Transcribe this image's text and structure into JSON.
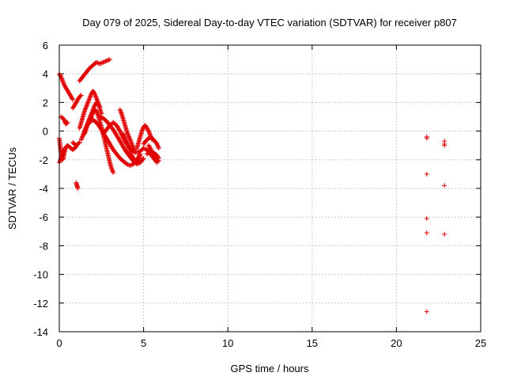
{
  "chart_data": {
    "type": "scatter",
    "title": "Day 079 of 2025, Sidereal Day-to-day VTEC variation (SDTVAR) for receiver p807",
    "xlabel": "GPS time / hours",
    "ylabel": "SDTVAR / TECUs",
    "xlim": [
      0,
      25
    ],
    "ylim": [
      -14,
      6
    ],
    "xticks": [
      0,
      5,
      10,
      15,
      20,
      25
    ],
    "yticks": [
      6,
      4,
      2,
      0,
      -2,
      -4,
      -6,
      -8,
      -10,
      -12,
      -14
    ],
    "grid": true,
    "marker": "+",
    "color": "#e00000",
    "series": [
      {
        "name": "p807",
        "segments": [
          {
            "x": [
              0.0,
              0.1,
              0.2,
              0.3,
              0.4,
              0.5,
              0.6,
              0.7,
              0.8
            ],
            "y": [
              4.0,
              3.8,
              3.5,
              3.2,
              3.0,
              2.8,
              2.6,
              2.4,
              2.2
            ]
          },
          {
            "x": [
              0.0,
              0.1,
              0.2,
              0.3,
              0.4,
              0.5,
              0.6,
              0.7,
              0.8,
              0.9,
              1.0
            ],
            "y": [
              -2.2,
              -1.9,
              -1.6,
              -1.3,
              -1.1,
              -1.0,
              -1.1,
              -1.2,
              -1.3,
              -1.2,
              -1.1
            ]
          },
          {
            "x": [
              0.0,
              0.05,
              0.1,
              0.15,
              0.2,
              0.25,
              0.3,
              0.35
            ],
            "y": [
              -0.5,
              -1.0,
              -1.5,
              -1.8,
              -2.0,
              -1.8,
              -1.5,
              -1.2
            ]
          },
          {
            "x": [
              0.1,
              0.2,
              0.3,
              0.35,
              0.4,
              0.5
            ],
            "y": [
              1.0,
              0.9,
              0.8,
              0.6,
              0.5,
              0.6
            ]
          },
          {
            "x": [
              0.8,
              0.9,
              1.0,
              1.1,
              1.2,
              1.3
            ],
            "y": [
              1.6,
              1.8,
              2.0,
              2.2,
              2.4,
              2.5
            ]
          },
          {
            "x": [
              0.8,
              0.9,
              1.0,
              1.1,
              1.2
            ],
            "y": [
              -0.8,
              -0.9,
              -1.0,
              -0.9,
              -0.8
            ]
          },
          {
            "x": [
              1.0,
              1.05,
              1.1
            ],
            "y": [
              -3.6,
              -3.8,
              -4.0
            ]
          },
          {
            "x": [
              1.2,
              1.4,
              1.6,
              1.8,
              2.0,
              2.2,
              2.4,
              2.6,
              2.8,
              3.0
            ],
            "y": [
              3.5,
              3.8,
              4.1,
              4.4,
              4.6,
              4.8,
              4.7,
              4.8,
              4.9,
              5.0
            ]
          },
          {
            "x": [
              1.2,
              1.3,
              1.4,
              1.5,
              1.6,
              1.7,
              1.8,
              1.9,
              2.0,
              2.1,
              2.2,
              2.3,
              2.4,
              2.5
            ],
            "y": [
              0.2,
              0.6,
              1.0,
              1.4,
              1.7,
              2.0,
              2.3,
              2.6,
              2.8,
              2.6,
              2.3,
              2.0,
              1.6,
              1.2
            ]
          },
          {
            "x": [
              1.3,
              1.4,
              1.5,
              1.6,
              1.7,
              1.8,
              1.9,
              2.0,
              2.1,
              2.2,
              2.3,
              2.4
            ],
            "y": [
              -0.6,
              -0.3,
              0.0,
              0.3,
              0.6,
              0.9,
              1.2,
              1.5,
              1.8,
              2.0,
              1.9,
              1.7
            ]
          },
          {
            "x": [
              1.5,
              1.6,
              1.7,
              1.8,
              1.9,
              2.0,
              2.1,
              2.2,
              2.3,
              2.4,
              2.5,
              2.6,
              2.7,
              2.8,
              2.9,
              3.0,
              3.1,
              3.2
            ],
            "y": [
              -0.2,
              0.2,
              0.5,
              0.8,
              1.0,
              1.3,
              1.5,
              1.4,
              1.1,
              0.7,
              0.3,
              -0.2,
              -0.7,
              -1.2,
              -1.7,
              -2.2,
              -2.6,
              -2.9
            ]
          },
          {
            "x": [
              1.8,
              2.0,
              2.2,
              2.4,
              2.6,
              2.8,
              3.0,
              3.2,
              3.4,
              3.6,
              3.8,
              4.0,
              4.2,
              4.4,
              4.6,
              4.8
            ],
            "y": [
              0.6,
              0.8,
              0.6,
              0.3,
              -0.1,
              -0.5,
              -0.9,
              -1.3,
              -1.6,
              -1.9,
              -2.1,
              -2.3,
              -2.4,
              -2.3,
              -2.0,
              -1.6
            ]
          },
          {
            "x": [
              2.4,
              2.6,
              2.8,
              3.0,
              3.2,
              3.4,
              3.6,
              3.8,
              4.0,
              4.2,
              4.4,
              4.6,
              4.8,
              5.0
            ],
            "y": [
              1.0,
              0.9,
              0.7,
              0.4,
              0.1,
              -0.3,
              -0.7,
              -1.1,
              -1.5,
              -1.8,
              -2.1,
              -2.3,
              -2.2,
              -1.9
            ]
          },
          {
            "x": [
              2.6,
              2.8,
              3.0,
              3.2,
              3.4,
              3.6,
              3.8,
              4.0,
              4.2,
              4.4,
              4.6,
              4.8,
              5.0,
              5.2,
              5.4,
              5.6,
              5.8
            ],
            "y": [
              -0.2,
              0.1,
              0.4,
              0.6,
              0.4,
              0.0,
              -0.5,
              -0.9,
              -1.2,
              -1.4,
              -1.5,
              -1.4,
              -1.2,
              -1.3,
              -1.6,
              -1.9,
              -2.2
            ]
          },
          {
            "x": [
              3.6,
              3.7,
              3.8,
              3.9,
              4.0,
              4.1,
              4.2,
              4.3,
              4.4,
              4.5
            ],
            "y": [
              1.5,
              1.2,
              0.8,
              0.4,
              0.0,
              -0.3,
              -0.6,
              -0.9,
              -1.2,
              -1.5
            ]
          },
          {
            "x": [
              3.8,
              3.9,
              4.0,
              4.1,
              4.2,
              4.3,
              4.4,
              4.5,
              4.6,
              4.7,
              4.8
            ],
            "y": [
              -0.2,
              -0.5,
              -0.8,
              -1.1,
              -1.4,
              -1.7,
              -1.9,
              -2.1,
              -2.2,
              -2.0,
              -1.7
            ]
          },
          {
            "x": [
              4.6,
              4.7,
              4.8,
              4.9,
              5.0,
              5.1,
              5.2,
              5.3,
              5.4,
              5.5
            ],
            "y": [
              -1.2,
              -0.8,
              -0.4,
              0.0,
              0.3,
              0.4,
              0.2,
              0.0,
              -0.3,
              -0.6
            ]
          },
          {
            "x": [
              5.0,
              5.2,
              5.4,
              5.6,
              5.8,
              5.9
            ],
            "y": [
              -0.9,
              -0.6,
              -0.4,
              -0.6,
              -0.9,
              -1.2
            ]
          },
          {
            "x": [
              5.2,
              5.4,
              5.6,
              5.8,
              5.9
            ],
            "y": [
              -1.6,
              -1.4,
              -1.5,
              -1.7,
              -1.9
            ]
          },
          {
            "x": [
              5.3,
              5.4,
              5.5,
              5.6,
              5.7,
              5.8,
              5.9
            ],
            "y": [
              -1.0,
              -1.2,
              -1.5,
              -1.7,
              -1.9,
              -2.0,
              -2.1
            ]
          }
        ],
        "isolated": {
          "x": [
            21.8,
            21.8,
            21.8,
            21.8,
            21.8,
            21.8,
            22.85,
            22.85,
            22.85,
            22.85,
            22.85
          ],
          "y": [
            -0.5,
            -3.0,
            -6.1,
            -7.1,
            -12.6,
            -0.4,
            -0.7,
            -0.9,
            -1.0,
            -3.8,
            -7.2
          ]
        }
      }
    ]
  }
}
